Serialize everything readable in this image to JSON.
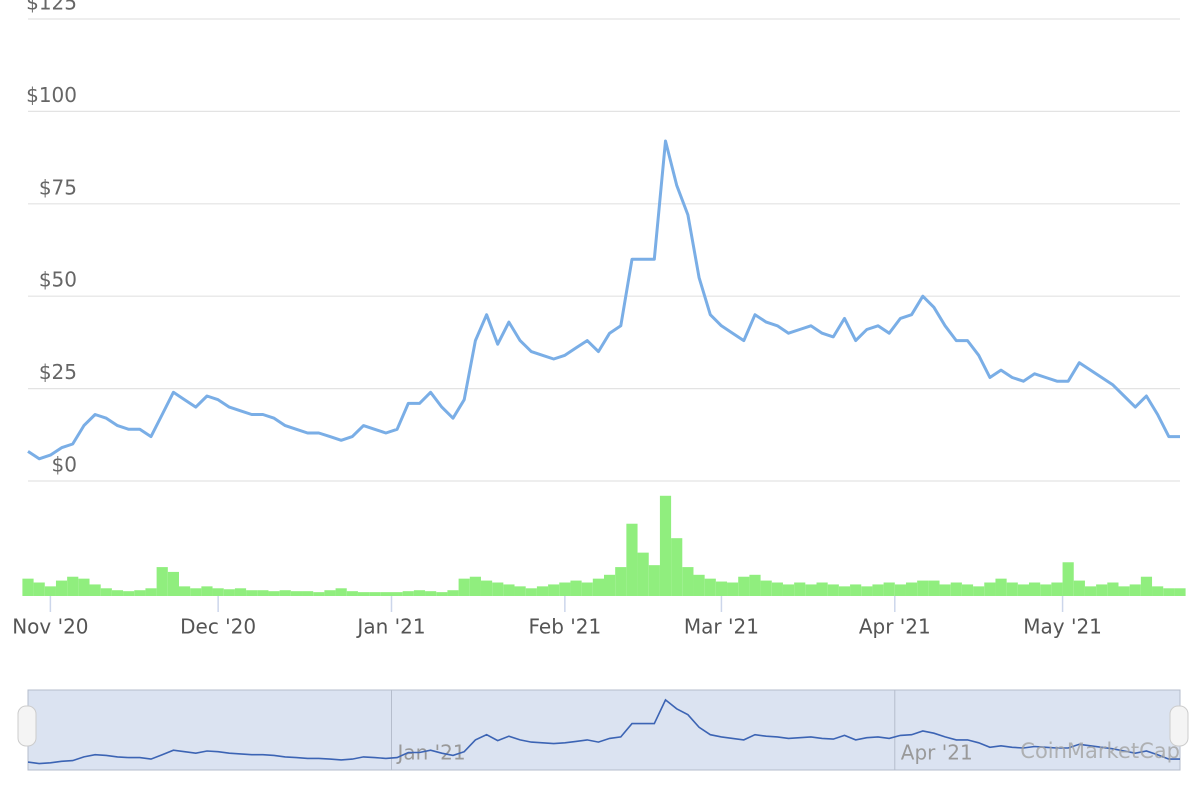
{
  "chart_data": [
    {
      "type": "line",
      "color": "#7aaee6",
      "values": [
        8,
        6,
        7,
        9,
        10,
        15,
        18,
        17,
        15,
        14,
        14,
        12,
        18,
        24,
        22,
        20,
        23,
        22,
        20,
        19,
        18,
        18,
        17,
        15,
        14,
        13,
        13,
        12,
        11,
        12,
        15,
        14,
        13,
        14,
        21,
        21,
        24,
        20,
        17,
        22,
        38,
        45,
        37,
        43,
        38,
        35,
        34,
        33,
        34,
        36,
        38,
        35,
        40,
        42,
        60,
        60,
        60,
        92,
        80,
        72,
        55,
        45,
        42,
        40,
        38,
        45,
        43,
        42,
        40,
        41,
        42,
        40,
        39,
        44,
        38,
        41,
        42,
        40,
        44,
        45,
        50,
        47,
        42,
        38,
        38,
        34,
        28,
        30,
        28,
        27,
        29,
        28,
        27,
        27,
        32,
        30,
        28,
        26,
        23,
        20,
        23,
        18,
        12,
        12
      ],
      "xlim": [
        0,
        103
      ],
      "xticks": [
        {
          "value": 2,
          "label": "Nov '20"
        },
        {
          "value": 17,
          "label": "Dec '20"
        },
        {
          "value": 32.5,
          "label": "Jan '21"
        },
        {
          "value": 48,
          "label": "Feb '21"
        },
        {
          "value": 62,
          "label": "Mar '21"
        },
        {
          "value": 77.5,
          "label": "Apr '21"
        },
        {
          "value": 92.5,
          "label": "May '21"
        }
      ],
      "ylim": [
        0,
        125
      ],
      "yticks": [
        {
          "value": 0,
          "label": "$0"
        },
        {
          "value": 25,
          "label": "$25"
        },
        {
          "value": 50,
          "label": "$50"
        },
        {
          "value": 75,
          "label": "$75"
        },
        {
          "value": 100,
          "label": "$100"
        },
        {
          "value": 125,
          "label": "$125"
        }
      ],
      "grid": true,
      "watermark": "CoinMarketCap"
    },
    {
      "type": "bar",
      "color": "#90ee7e",
      "values": [
        18,
        14,
        10,
        16,
        20,
        18,
        12,
        8,
        6,
        5,
        6,
        8,
        30,
        25,
        10,
        8,
        10,
        8,
        7,
        8,
        6,
        6,
        5,
        6,
        5,
        5,
        4,
        6,
        8,
        5,
        4,
        4,
        4,
        4,
        5,
        6,
        5,
        4,
        6,
        18,
        20,
        16,
        14,
        12,
        10,
        8,
        10,
        12,
        14,
        16,
        14,
        18,
        22,
        30,
        75,
        45,
        32,
        104,
        60,
        30,
        22,
        18,
        15,
        14,
        20,
        22,
        16,
        14,
        12,
        14,
        12,
        14,
        12,
        10,
        12,
        10,
        12,
        14,
        12,
        14,
        16,
        16,
        12,
        14,
        12,
        10,
        14,
        18,
        14,
        12,
        14,
        12,
        14,
        35,
        16,
        10,
        12,
        14,
        10,
        12,
        20,
        10,
        8,
        8
      ],
      "ylim": [
        0,
        110
      ]
    }
  ]
}
